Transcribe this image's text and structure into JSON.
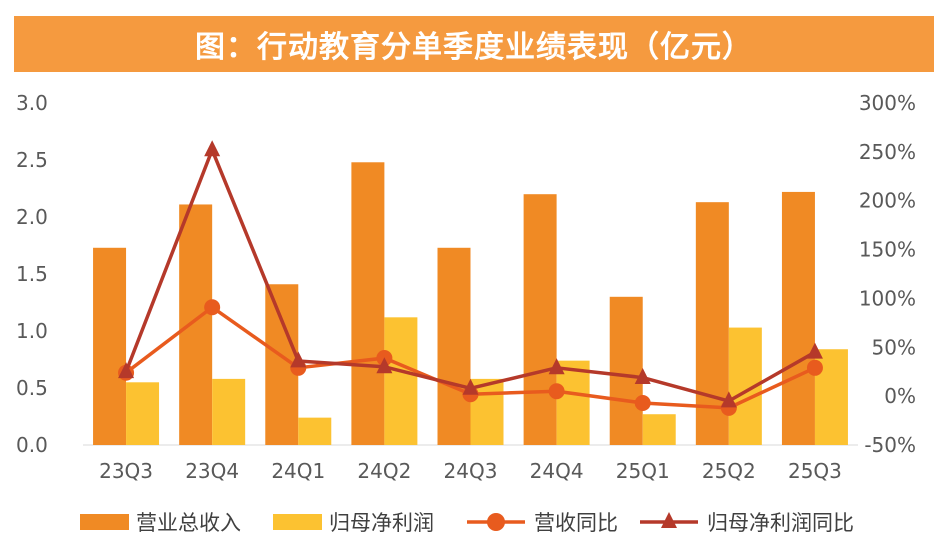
{
  "title": "图：行动教育分单季度业绩表现（亿元）",
  "chart_data": {
    "type": "bar",
    "title": "图：行动教育分单季度业绩表现（亿元）",
    "categories": [
      "23Q3",
      "23Q4",
      "24Q1",
      "24Q2",
      "24Q3",
      "24Q4",
      "25Q1",
      "25Q2",
      "25Q3"
    ],
    "ylim": [
      0,
      3.0
    ],
    "y_ticks": [
      "3.0",
      "2.5",
      "2.0",
      "1.5",
      "1.0",
      "0.5",
      "0.0"
    ],
    "y2lim": [
      -50,
      300
    ],
    "y2_ticks": [
      "300%",
      "250%",
      "200%",
      "150%",
      "100%",
      "50%",
      "0%",
      "-50%"
    ],
    "series": [
      {
        "name": "营业总收入",
        "kind": "bar",
        "axis": "left",
        "color": "#f08a24",
        "values": [
          1.73,
          2.11,
          1.41,
          2.48,
          1.73,
          2.2,
          1.3,
          2.13,
          2.22
        ]
      },
      {
        "name": "归母净利润",
        "kind": "bar",
        "axis": "left",
        "color": "#fcc231",
        "values": [
          0.55,
          0.58,
          0.24,
          1.12,
          0.58,
          0.74,
          0.27,
          1.03,
          0.84
        ]
      },
      {
        "name": "营收同比",
        "kind": "line",
        "marker": "circle",
        "axis": "right",
        "color": "#e85b1e",
        "values": [
          24,
          91,
          29,
          39,
          2,
          5,
          -7,
          -12,
          29
        ]
      },
      {
        "name": "归母净利润同比",
        "kind": "line",
        "marker": "triangle",
        "axis": "right",
        "color": "#b5392a",
        "values": [
          25,
          252,
          36,
          30,
          8,
          29,
          19,
          -5,
          45
        ]
      }
    ]
  }
}
